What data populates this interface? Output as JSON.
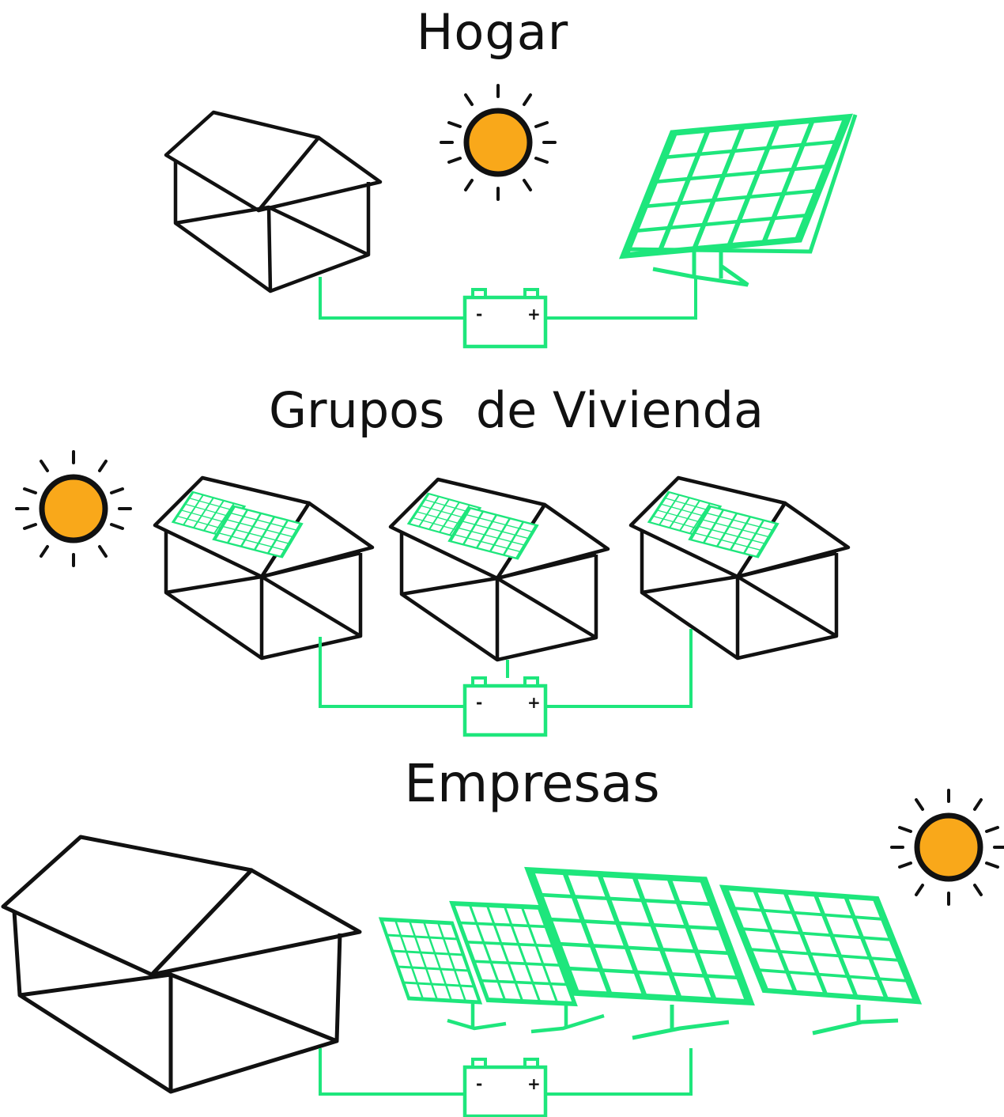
{
  "colors": {
    "line": "#111111",
    "solar": "#1ee67c",
    "sun": "#f9a81a",
    "background": "#ffffff"
  },
  "sections": [
    {
      "id": "hogar",
      "title": "Hogar",
      "icons": [
        "sun-icon",
        "house-icon",
        "solar-panel-icon",
        "battery-icon"
      ]
    },
    {
      "id": "grupos",
      "title": "Grupos  de Vivienda",
      "icons": [
        "sun-icon",
        "house-icon",
        "house-icon",
        "house-icon",
        "battery-icon"
      ]
    },
    {
      "id": "empresas",
      "title": "Empresas",
      "icons": [
        "house-icon",
        "solar-panel-icon",
        "solar-panel-icon",
        "solar-panel-icon",
        "solar-panel-icon",
        "sun-icon",
        "battery-icon"
      ]
    }
  ],
  "battery": {
    "minus": "-",
    "plus": "+"
  }
}
